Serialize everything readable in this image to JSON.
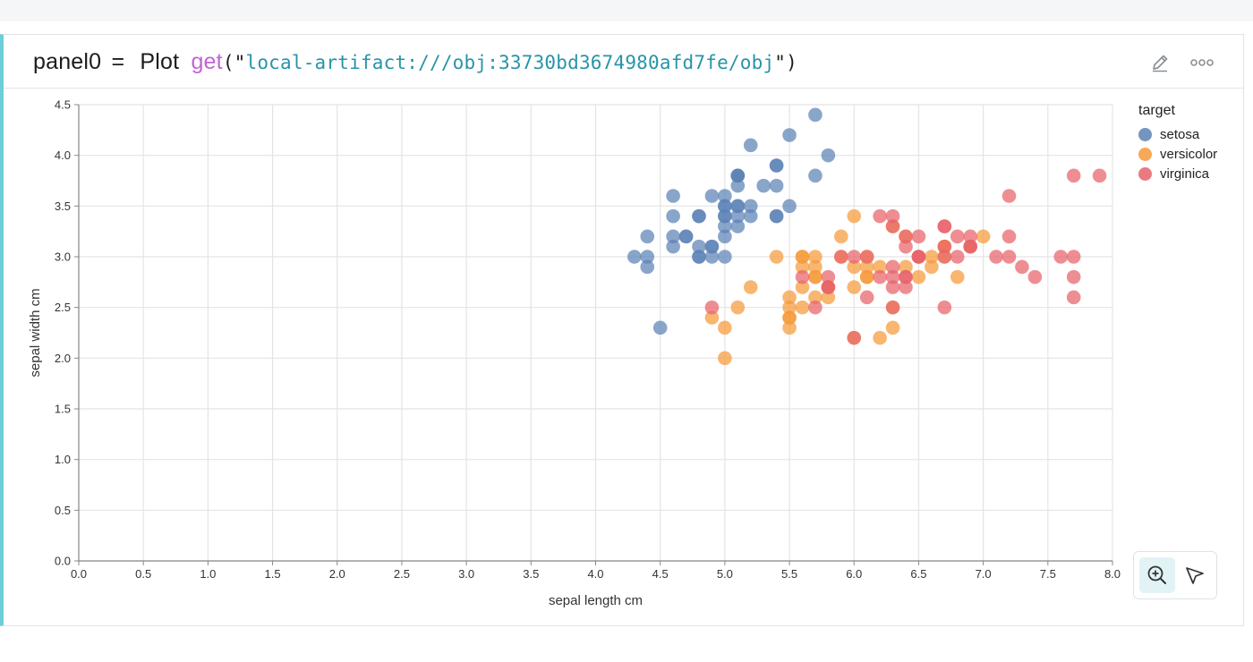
{
  "header": {
    "var_name": "panel0",
    "equals": "=",
    "fn_plot": "Plot",
    "fn_get": "get",
    "open": "(\"",
    "uri": "local-artifact:///obj:33730bd3674980afd7fe/obj",
    "close": "\")",
    "edit_icon": "pencil-icon",
    "more_icon": "more-horizontal-icon"
  },
  "legend": {
    "title": "target",
    "items": [
      {
        "label": "setosa",
        "color": "#5b82b5"
      },
      {
        "label": "versicolor",
        "color": "#f59a3a"
      },
      {
        "label": "virginica",
        "color": "#e8636a"
      }
    ]
  },
  "toolbar": {
    "zoom_icon": "zoom-in-icon",
    "select_icon": "pointer-arrow-icon",
    "active": "zoom"
  },
  "chart_data": {
    "type": "scatter",
    "xlabel": "sepal length cm",
    "ylabel": "sepal width cm",
    "xlim": [
      0,
      8
    ],
    "ylim": [
      0,
      4.5
    ],
    "xticks": [
      0.0,
      0.5,
      1.0,
      1.5,
      2.0,
      2.5,
      3.0,
      3.5,
      4.0,
      4.5,
      5.0,
      5.5,
      6.0,
      6.5,
      7.0,
      7.5,
      8.0
    ],
    "yticks": [
      0.0,
      0.5,
      1.0,
      1.5,
      2.0,
      2.5,
      3.0,
      3.5,
      4.0,
      4.5
    ],
    "grid": true,
    "legend_position": "right",
    "series": [
      {
        "name": "setosa",
        "color": "#5b82b5",
        "points": [
          [
            5.1,
            3.5
          ],
          [
            4.9,
            3.0
          ],
          [
            4.7,
            3.2
          ],
          [
            4.6,
            3.1
          ],
          [
            5.0,
            3.6
          ],
          [
            5.4,
            3.9
          ],
          [
            4.6,
            3.4
          ],
          [
            5.0,
            3.4
          ],
          [
            4.4,
            2.9
          ],
          [
            4.9,
            3.1
          ],
          [
            5.4,
            3.7
          ],
          [
            4.8,
            3.4
          ],
          [
            4.8,
            3.0
          ],
          [
            4.3,
            3.0
          ],
          [
            5.8,
            4.0
          ],
          [
            5.7,
            4.4
          ],
          [
            5.4,
            3.9
          ],
          [
            5.1,
            3.5
          ],
          [
            5.7,
            3.8
          ],
          [
            5.1,
            3.8
          ],
          [
            5.4,
            3.4
          ],
          [
            5.1,
            3.7
          ],
          [
            4.6,
            3.6
          ],
          [
            5.1,
            3.3
          ],
          [
            4.8,
            3.4
          ],
          [
            5.0,
            3.0
          ],
          [
            5.0,
            3.4
          ],
          [
            5.2,
            3.5
          ],
          [
            5.2,
            3.4
          ],
          [
            4.7,
            3.2
          ],
          [
            4.8,
            3.1
          ],
          [
            5.4,
            3.4
          ],
          [
            5.2,
            4.1
          ],
          [
            5.5,
            4.2
          ],
          [
            4.9,
            3.1
          ],
          [
            5.0,
            3.2
          ],
          [
            5.5,
            3.5
          ],
          [
            4.9,
            3.6
          ],
          [
            4.4,
            3.0
          ],
          [
            5.1,
            3.4
          ],
          [
            5.0,
            3.5
          ],
          [
            4.5,
            2.3
          ],
          [
            4.4,
            3.2
          ],
          [
            5.0,
            3.5
          ],
          [
            5.1,
            3.8
          ],
          [
            4.8,
            3.0
          ],
          [
            5.1,
            3.8
          ],
          [
            4.6,
            3.2
          ],
          [
            5.3,
            3.7
          ],
          [
            5.0,
            3.3
          ]
        ]
      },
      {
        "name": "versicolor",
        "color": "#f59a3a",
        "points": [
          [
            7.0,
            3.2
          ],
          [
            6.4,
            3.2
          ],
          [
            6.9,
            3.1
          ],
          [
            5.5,
            2.3
          ],
          [
            6.5,
            2.8
          ],
          [
            5.7,
            2.8
          ],
          [
            6.3,
            3.3
          ],
          [
            4.9,
            2.4
          ],
          [
            6.6,
            2.9
          ],
          [
            5.2,
            2.7
          ],
          [
            5.0,
            2.0
          ],
          [
            5.9,
            3.0
          ],
          [
            6.0,
            2.2
          ],
          [
            6.1,
            2.9
          ],
          [
            5.6,
            2.9
          ],
          [
            6.7,
            3.1
          ],
          [
            5.6,
            3.0
          ],
          [
            5.8,
            2.7
          ],
          [
            6.2,
            2.2
          ],
          [
            5.6,
            2.5
          ],
          [
            5.9,
            3.2
          ],
          [
            6.1,
            2.8
          ],
          [
            6.3,
            2.5
          ],
          [
            6.1,
            2.8
          ],
          [
            6.4,
            2.9
          ],
          [
            6.6,
            3.0
          ],
          [
            6.8,
            2.8
          ],
          [
            6.7,
            3.0
          ],
          [
            6.0,
            2.9
          ],
          [
            5.7,
            2.6
          ],
          [
            5.5,
            2.4
          ],
          [
            5.5,
            2.4
          ],
          [
            5.8,
            2.7
          ],
          [
            6.0,
            2.7
          ],
          [
            5.4,
            3.0
          ],
          [
            6.0,
            3.4
          ],
          [
            6.7,
            3.1
          ],
          [
            6.3,
            2.3
          ],
          [
            5.6,
            3.0
          ],
          [
            5.5,
            2.5
          ],
          [
            5.5,
            2.6
          ],
          [
            6.1,
            3.0
          ],
          [
            5.8,
            2.6
          ],
          [
            5.0,
            2.3
          ],
          [
            5.6,
            2.7
          ],
          [
            5.7,
            3.0
          ],
          [
            5.7,
            2.9
          ],
          [
            6.2,
            2.9
          ],
          [
            5.1,
            2.5
          ],
          [
            5.7,
            2.8
          ]
        ]
      },
      {
        "name": "virginica",
        "color": "#e8636a",
        "points": [
          [
            6.3,
            3.3
          ],
          [
            5.8,
            2.7
          ],
          [
            7.1,
            3.0
          ],
          [
            6.3,
            2.9
          ],
          [
            6.5,
            3.0
          ],
          [
            7.6,
            3.0
          ],
          [
            4.9,
            2.5
          ],
          [
            7.3,
            2.9
          ],
          [
            6.7,
            2.5
          ],
          [
            7.2,
            3.6
          ],
          [
            6.5,
            3.2
          ],
          [
            6.4,
            2.7
          ],
          [
            6.8,
            3.0
          ],
          [
            5.7,
            2.5
          ],
          [
            5.8,
            2.8
          ],
          [
            6.4,
            3.2
          ],
          [
            6.5,
            3.0
          ],
          [
            7.7,
            3.8
          ],
          [
            7.7,
            2.6
          ],
          [
            6.0,
            2.2
          ],
          [
            6.9,
            3.2
          ],
          [
            5.6,
            2.8
          ],
          [
            7.7,
            2.8
          ],
          [
            6.3,
            2.7
          ],
          [
            6.7,
            3.3
          ],
          [
            7.2,
            3.2
          ],
          [
            6.2,
            2.8
          ],
          [
            6.1,
            3.0
          ],
          [
            6.4,
            2.8
          ],
          [
            7.2,
            3.0
          ],
          [
            7.4,
            2.8
          ],
          [
            7.9,
            3.8
          ],
          [
            6.4,
            2.8
          ],
          [
            6.3,
            2.8
          ],
          [
            6.1,
            2.6
          ],
          [
            7.7,
            3.0
          ],
          [
            6.3,
            3.4
          ],
          [
            6.4,
            3.1
          ],
          [
            6.0,
            3.0
          ],
          [
            6.9,
            3.1
          ],
          [
            6.7,
            3.1
          ],
          [
            6.9,
            3.1
          ],
          [
            5.8,
            2.7
          ],
          [
            6.8,
            3.2
          ],
          [
            6.7,
            3.3
          ],
          [
            6.7,
            3.0
          ],
          [
            6.3,
            2.5
          ],
          [
            6.5,
            3.0
          ],
          [
            6.2,
            3.4
          ],
          [
            5.9,
            3.0
          ]
        ]
      }
    ]
  }
}
